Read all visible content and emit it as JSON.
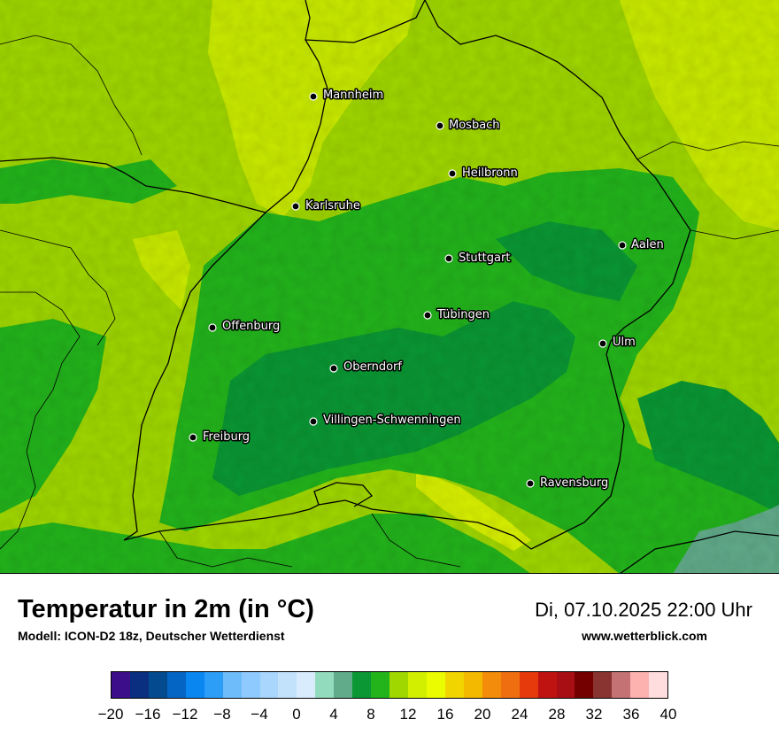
{
  "title": "Temperatur in 2m (in °C)",
  "subtitle": "Modell: ICON-D2 18z, Deutscher Wetterdienst",
  "datetime": "Di, 07.10.2025 22:00 Uhr",
  "website": "www.wetterblick.com",
  "cities": [
    {
      "name": "Mannheim"
    },
    {
      "name": "Mosbach"
    },
    {
      "name": "Heilbronn"
    },
    {
      "name": "Karlsruhe"
    },
    {
      "name": "Aalen"
    },
    {
      "name": "Stuttgart"
    },
    {
      "name": "Tübingen"
    },
    {
      "name": "Offenburg"
    },
    {
      "name": "Ulm"
    },
    {
      "name": "Oberndorf"
    },
    {
      "name": "Villingen-Schwenningen"
    },
    {
      "name": "Freiburg"
    },
    {
      "name": "Ravensburg"
    }
  ],
  "legend": {
    "min": -20,
    "max": 40,
    "step": 2,
    "ticks": [
      "−20",
      "−16",
      "−12",
      "−8",
      "−4",
      "0",
      "4",
      "8",
      "12",
      "16",
      "20",
      "24",
      "28",
      "32",
      "36",
      "40"
    ],
    "colors": [
      "#3d0e8a",
      "#0a2f80",
      "#034a8e",
      "#0565c4",
      "#0a86f0",
      "#2c9ef7",
      "#6fbcfb",
      "#8ecafd",
      "#a8d6fc",
      "#c2e2fc",
      "#d8ecfd",
      "#93dbbd",
      "#61ab8a",
      "#0a9734",
      "#23b41c",
      "#a0d700",
      "#d3ef00",
      "#ebfb00",
      "#f1d500",
      "#f3b800",
      "#f28c0a",
      "#ef6e10",
      "#e63a0c",
      "#bf1312",
      "#a70f14",
      "#740000",
      "#8a3431",
      "#c57274",
      "#fdb2b0",
      "#ffdcdd"
    ]
  }
}
